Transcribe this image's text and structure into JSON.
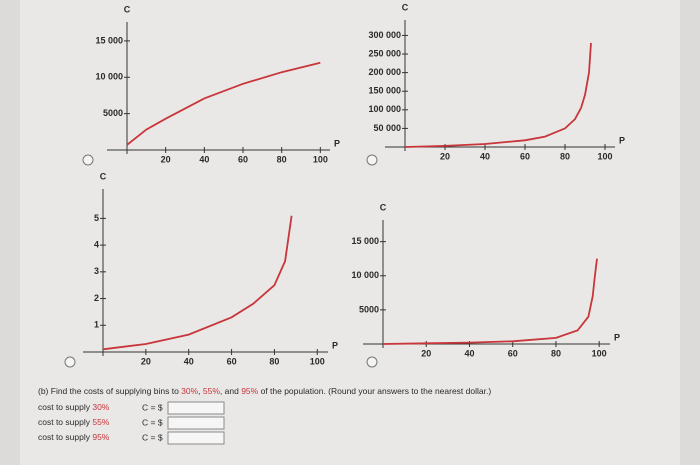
{
  "chart_data": [
    {
      "type": "line",
      "x_label": "P",
      "y_label": "C",
      "xlim": [
        0,
        105
      ],
      "ylim": [
        0,
        16500
      ],
      "xticks": [
        20,
        40,
        60,
        80,
        100
      ],
      "yticks": [
        5000,
        {
          "value": 10000,
          "label": "10 000"
        },
        {
          "value": 15000,
          "label": "15 000"
        }
      ],
      "series": [
        {
          "color": "#c8353a",
          "x": [
            0,
            10,
            20,
            40,
            60,
            80,
            100
          ],
          "values": [
            700,
            2800,
            4300,
            7100,
            9100,
            10700,
            12000
          ]
        }
      ]
    },
    {
      "type": "line",
      "x_label": "P",
      "y_label": "C",
      "xlim": [
        0,
        105
      ],
      "ylim": [
        0,
        320000
      ],
      "xticks": [
        20,
        40,
        60,
        80,
        100
      ],
      "yticks": [
        {
          "value": 50000,
          "label": "50 000"
        },
        {
          "value": 100000,
          "label": "100 000"
        },
        {
          "value": 150000,
          "label": "150 000"
        },
        {
          "value": 200000,
          "label": "200 000"
        },
        {
          "value": 250000,
          "label": "250 000"
        },
        {
          "value": 300000,
          "label": "300 000"
        }
      ],
      "series": [
        {
          "color": "#c8353a",
          "x": [
            0,
            20,
            40,
            60,
            70,
            80,
            85,
            88,
            90,
            92,
            93
          ],
          "values": [
            0,
            3000,
            8000,
            18000,
            28000,
            50000,
            75000,
            105000,
            140000,
            200000,
            280000
          ]
        }
      ]
    },
    {
      "type": "line",
      "x_label": "P",
      "y_label": "C",
      "xlim": [
        0,
        105
      ],
      "ylim": [
        0,
        5.8
      ],
      "xticks": [
        20,
        40,
        60,
        80,
        100
      ],
      "yticks": [
        1,
        2,
        3,
        4,
        5
      ],
      "series": [
        {
          "color": "#c8353a",
          "x": [
            0,
            20,
            40,
            60,
            70,
            80,
            85,
            88
          ],
          "values": [
            0.1,
            0.3,
            0.65,
            1.3,
            1.8,
            2.5,
            3.4,
            5.1
          ]
        }
      ]
    },
    {
      "type": "line",
      "x_label": "P",
      "y_label": "C",
      "xlim": [
        0,
        105
      ],
      "ylim": [
        0,
        17000
      ],
      "xticks": [
        20,
        40,
        60,
        80,
        100
      ],
      "yticks": [
        5000,
        {
          "value": 10000,
          "label": "10 000"
        },
        {
          "value": 15000,
          "label": "15 000"
        }
      ],
      "series": [
        {
          "color": "#c8353a",
          "x": [
            0,
            20,
            40,
            60,
            80,
            90,
            95,
            97,
            98,
            99
          ],
          "values": [
            0,
            100,
            200,
            400,
            900,
            2000,
            4000,
            7000,
            10000,
            12500
          ]
        }
      ]
    }
  ],
  "question_parts": [
    "(b) Find the costs of supplying bins to ",
    "30%",
    ", ",
    "55%",
    ", and ",
    "95%",
    " of the population. (Round your answers to the nearest dollar.)"
  ],
  "answers": [
    {
      "label": "cost to supply ",
      "percent": "30%",
      "prefix": "C = $"
    },
    {
      "label": "cost to supply ",
      "percent": "55%",
      "prefix": "C = $"
    },
    {
      "label": "cost to supply ",
      "percent": "95%",
      "prefix": "C = $"
    }
  ]
}
